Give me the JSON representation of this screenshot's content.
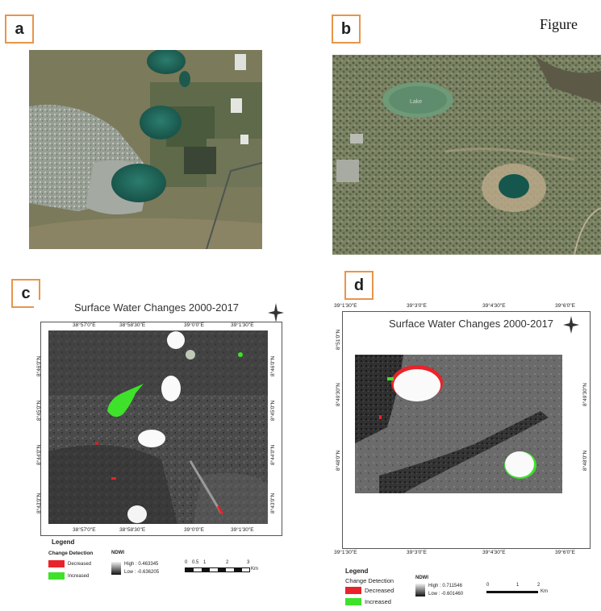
{
  "header": {
    "figure_word": "Figure"
  },
  "panels": {
    "a": {
      "label": "a"
    },
    "b": {
      "label": "b",
      "lake_text": "Lake"
    },
    "c": {
      "label": "c",
      "title": "Surface Water Changes 2000-2017",
      "top_coords": [
        "38°57'0\"E",
        "38°58'30\"E",
        "39°0'0\"E",
        "39°1'30\"E"
      ],
      "bottom_coords": [
        "38°57'0\"E",
        "38°58'30\"E",
        "39°0'0\"E",
        "39°1'30\"E"
      ],
      "side_coords": [
        "8°46'0\"N",
        "8°45'0\"N",
        "8°44'0\"N",
        "8°43'0\"N"
      ],
      "legend": {
        "title": "Legend",
        "change_title": "Change Detection",
        "decreased": "Decreased",
        "increased": "Increased",
        "ndwi_title": "NDWI",
        "high": "High : 0.463345",
        "low": "Low : -0.636205",
        "scale_labels": [
          "0",
          "0.5",
          "1",
          "2",
          "3"
        ],
        "unit": "Km"
      },
      "colors": {
        "decreased": "#e8242a",
        "increased": "#3ee22a"
      }
    },
    "d": {
      "label": "d",
      "title": "Surface Water Changes 2000-2017",
      "top_coords": [
        "39°1'30\"E",
        "39°3'0\"E",
        "39°4'30\"E",
        "39°6'0\"E"
      ],
      "bottom_coords": [
        "39°1'30\"E",
        "39°3'0\"E",
        "39°4'30\"E",
        "39°6'0\"E"
      ],
      "side_coords": [
        "8°51'0\"N",
        "8°49'30\"N",
        "8°48'0\"N"
      ],
      "legend": {
        "title": "Legend",
        "change_title": "Change Detection",
        "decreased": "Decreased",
        "increased": "Increased",
        "ndwi_title": "NDWI",
        "high": "High : 0.711546",
        "low": "Low : -0.601460",
        "scale_labels": [
          "0",
          "1",
          "2"
        ],
        "unit": "Km"
      },
      "colors": {
        "decreased": "#e8242a",
        "increased": "#3ee22a"
      }
    }
  }
}
